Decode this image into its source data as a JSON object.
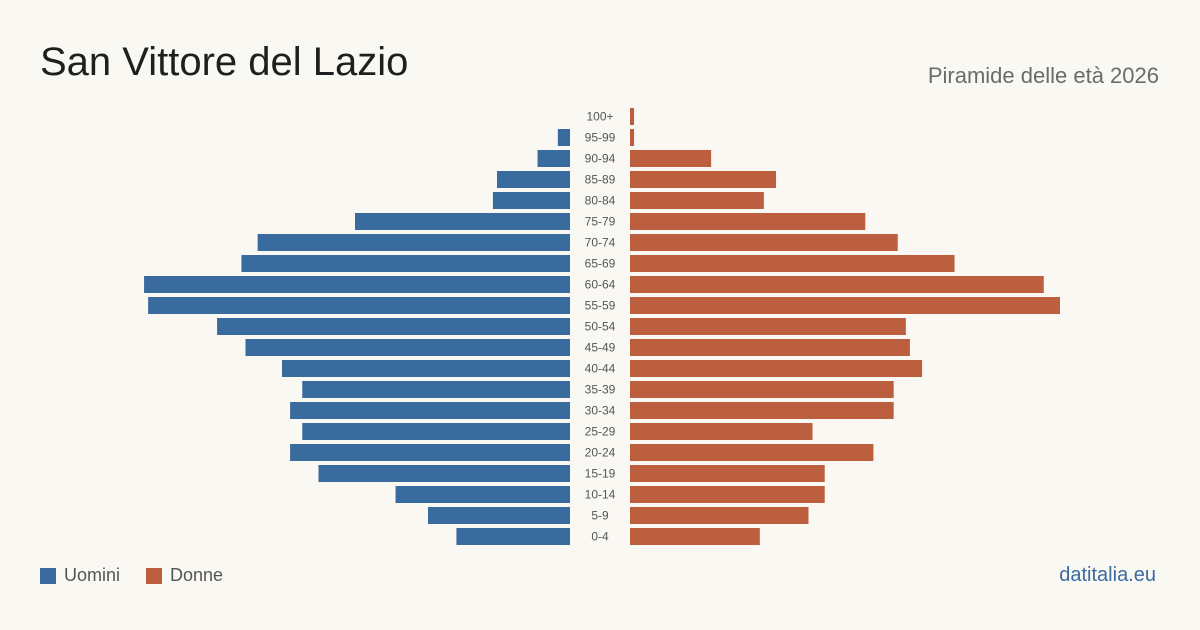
{
  "header": {
    "title": "San Vittore  del Lazio",
    "subtitle": "Piramide delle età 2026"
  },
  "legend": {
    "men_label": "Uomini",
    "women_label": "Donne"
  },
  "brand": "datitalia.eu",
  "colors": {
    "men": "#3a6b9e",
    "women": "#bb5f3e",
    "background": "#faf8f3",
    "label": "#555555"
  },
  "chart_data": {
    "type": "bar",
    "orientation": "horizontal-pyramid",
    "categories": [
      "100+",
      "95-99",
      "90-94",
      "85-89",
      "80-84",
      "75-79",
      "70-74",
      "65-69",
      "60-64",
      "55-59",
      "50-54",
      "45-49",
      "40-44",
      "35-39",
      "30-34",
      "25-29",
      "20-24",
      "15-19",
      "10-14",
      "5-9",
      "0-4"
    ],
    "series": [
      {
        "name": "Uomini",
        "values": [
          0,
          3,
          8,
          18,
          19,
          53,
          77,
          81,
          105,
          104,
          87,
          80,
          71,
          66,
          69,
          66,
          69,
          62,
          43,
          35,
          28
        ]
      },
      {
        "name": "Donne",
        "values": [
          1,
          1,
          20,
          36,
          33,
          58,
          66,
          80,
          102,
          106,
          68,
          69,
          72,
          65,
          65,
          45,
          60,
          48,
          48,
          44,
          32
        ]
      }
    ],
    "axis_max": 106,
    "grid": false,
    "legend_position": "bottom-left"
  }
}
